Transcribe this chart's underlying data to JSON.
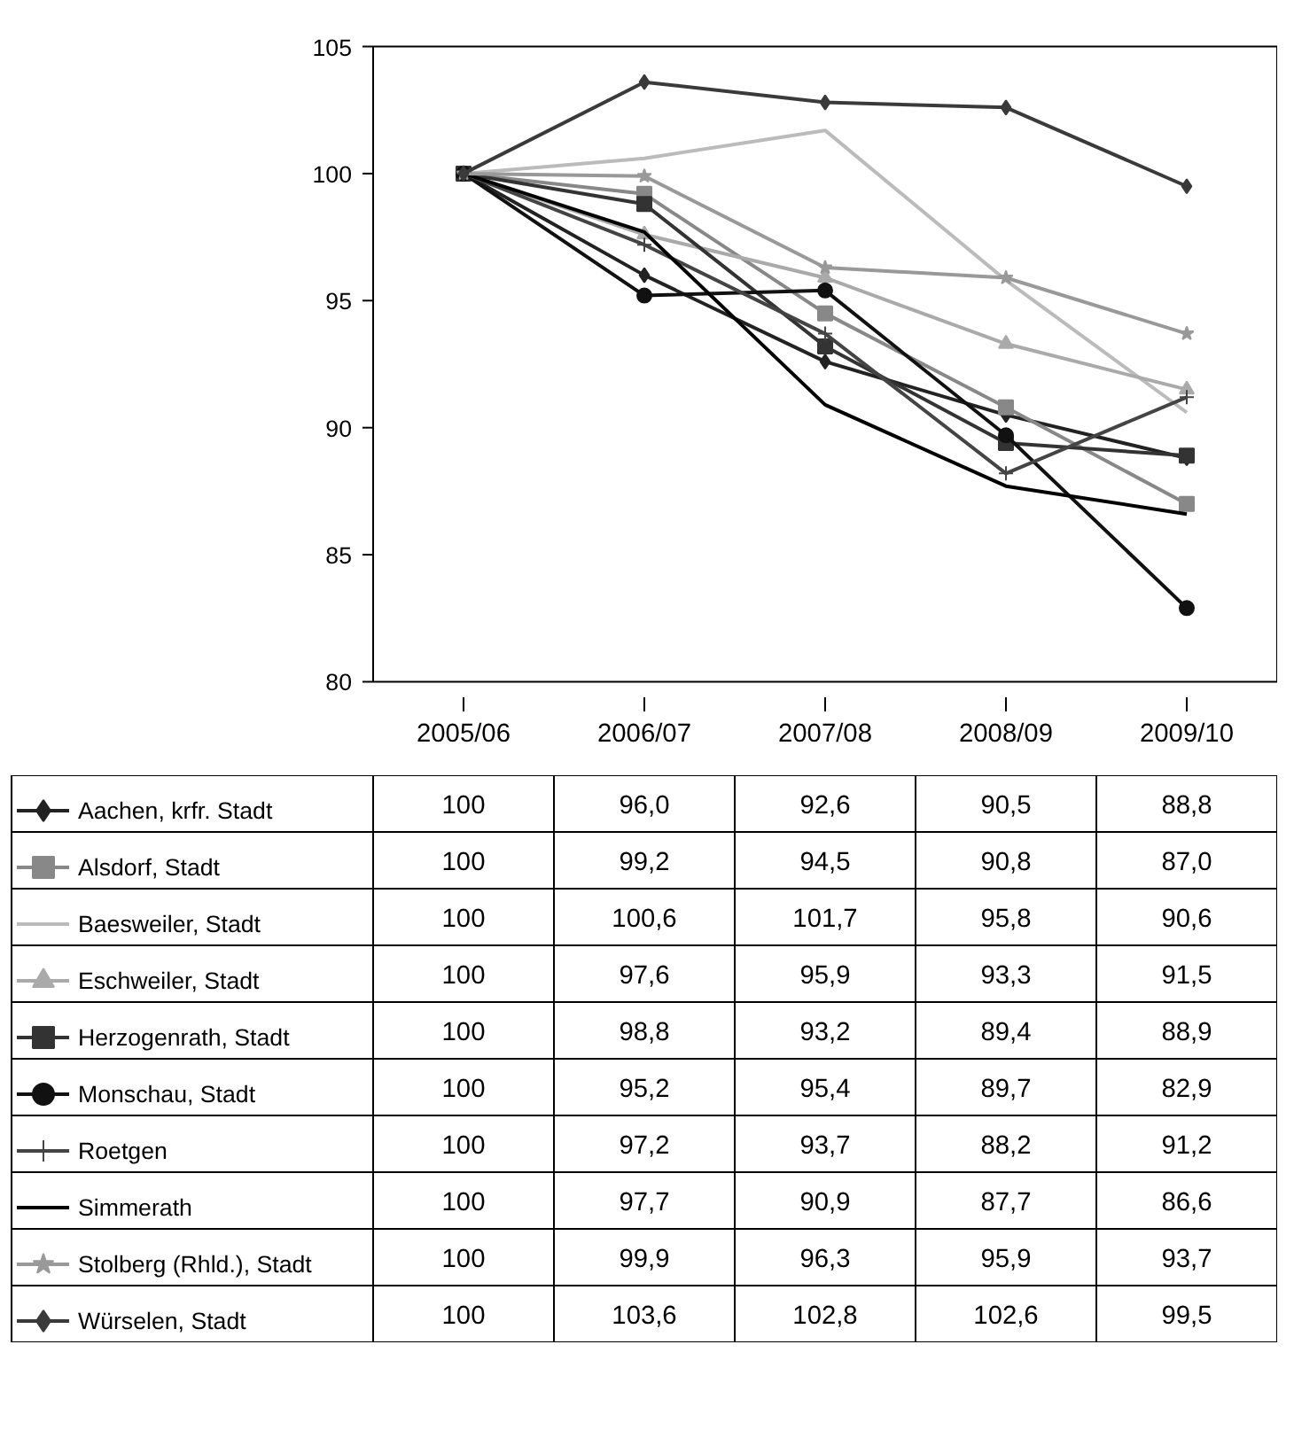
{
  "chart_data": {
    "type": "line",
    "categories": [
      "2005/06",
      "2006/07",
      "2007/08",
      "2008/09",
      "2009/10"
    ],
    "ylim": [
      80,
      105
    ],
    "yticks": [
      80,
      85,
      90,
      95,
      100,
      105
    ],
    "grid": false,
    "legend": "bottom",
    "series": [
      {
        "name": "Aachen, krfr. Stadt",
        "color": "#222222",
        "marker": "diamond",
        "values": [
          100,
          96.0,
          92.6,
          90.5,
          88.8
        ],
        "value_labels": [
          "100",
          "96,0",
          "92,6",
          "90,5",
          "88,8"
        ]
      },
      {
        "name": "Alsdorf, Stadt",
        "color": "#888888",
        "marker": "square",
        "values": [
          100,
          99.2,
          94.5,
          90.8,
          87.0
        ],
        "value_labels": [
          "100",
          "99,2",
          "94,5",
          "90,8",
          "87,0"
        ]
      },
      {
        "name": "Baesweiler, Stadt",
        "color": "#bbbbbb",
        "marker": "none",
        "values": [
          100,
          100.6,
          101.7,
          95.8,
          90.6
        ],
        "value_labels": [
          "100",
          "100,6",
          "101,7",
          "95,8",
          "90,6"
        ]
      },
      {
        "name": "Eschweiler, Stadt",
        "color": "#aaaaaa",
        "marker": "triangle",
        "values": [
          100,
          97.6,
          95.9,
          93.3,
          91.5
        ],
        "value_labels": [
          "100",
          "97,6",
          "95,9",
          "93,3",
          "91,5"
        ]
      },
      {
        "name": "Herzogenrath, Stadt",
        "color": "#333333",
        "marker": "square",
        "values": [
          100,
          98.8,
          93.2,
          89.4,
          88.9
        ],
        "value_labels": [
          "100",
          "98,8",
          "93,2",
          "89,4",
          "88,9"
        ]
      },
      {
        "name": "Monschau, Stadt",
        "color": "#111111",
        "marker": "circle",
        "values": [
          100,
          95.2,
          95.4,
          89.7,
          82.9
        ],
        "value_labels": [
          "100",
          "95,2",
          "95,4",
          "89,7",
          "82,9"
        ]
      },
      {
        "name": "Roetgen",
        "color": "#444444",
        "marker": "cross",
        "values": [
          100,
          97.2,
          93.7,
          88.2,
          91.2
        ],
        "value_labels": [
          "100",
          "97,2",
          "93,7",
          "88,2",
          "91,2"
        ]
      },
      {
        "name": "Simmerath",
        "color": "#000000",
        "marker": "none",
        "values": [
          100,
          97.7,
          90.9,
          87.7,
          86.6
        ],
        "value_labels": [
          "100",
          "97,7",
          "90,9",
          "87,7",
          "86,6"
        ]
      },
      {
        "name": "Stolberg (Rhld.), Stadt",
        "color": "#999999",
        "marker": "star",
        "values": [
          100,
          99.9,
          96.3,
          95.9,
          93.7
        ],
        "value_labels": [
          "100",
          "99,9",
          "96,3",
          "95,9",
          "93,7"
        ]
      },
      {
        "name": "Würselen, Stadt",
        "color": "#3a3a3a",
        "marker": "diamond",
        "values": [
          100,
          103.6,
          102.8,
          102.6,
          99.5
        ],
        "value_labels": [
          "100",
          "103,6",
          "102,8",
          "102,6",
          "99,5"
        ]
      }
    ]
  }
}
